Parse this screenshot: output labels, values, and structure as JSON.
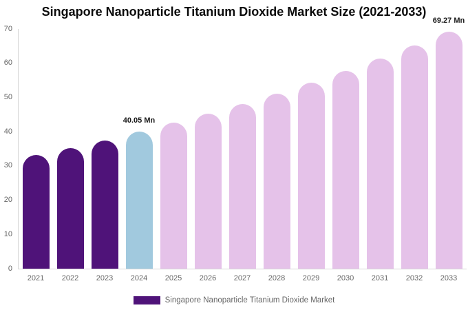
{
  "title": "Singapore Nanoparticle Titanium Dioxide Market Size (2021-2033)",
  "legend": {
    "label": "Singapore Nanoparticle Titanium Dioxide Market"
  },
  "colors": {
    "historical": "#4F1379",
    "highlight": "#A1C9DE",
    "forecast": "#E5C2E9",
    "axis_line": "#D6D6D6",
    "tick_label": "#666666",
    "annotation_text": "#1A1A1A",
    "title_text": "#0A0A0A",
    "background": "#FFFFFF"
  },
  "chart_data": {
    "type": "bar",
    "title": "Singapore Nanoparticle Titanium Dioxide Market Size (2021-2033)",
    "series_name": "Singapore Nanoparticle Titanium Dioxide Market",
    "categories": [
      "2021",
      "2022",
      "2023",
      "2024",
      "2025",
      "2026",
      "2027",
      "2028",
      "2029",
      "2030",
      "2031",
      "2032",
      "2033"
    ],
    "values": [
      33.2,
      35.2,
      37.5,
      40.05,
      42.6,
      45.2,
      48.1,
      51.1,
      54.3,
      57.7,
      61.4,
      65.2,
      69.27
    ],
    "unit": "Mn",
    "bar_color_roles": [
      "historical",
      "historical",
      "historical",
      "highlight",
      "forecast",
      "forecast",
      "forecast",
      "forecast",
      "forecast",
      "forecast",
      "forecast",
      "forecast",
      "forecast"
    ],
    "annotations": [
      {
        "index": 3,
        "text": "40.05 Mn"
      },
      {
        "index": 12,
        "text": "69.27 Mn"
      }
    ],
    "xlabel": "",
    "ylabel": "",
    "ylim": [
      0,
      70
    ],
    "yticks": [
      0,
      10,
      20,
      30,
      40,
      50,
      60,
      70
    ],
    "grid": false,
    "legend_position": "bottom"
  }
}
